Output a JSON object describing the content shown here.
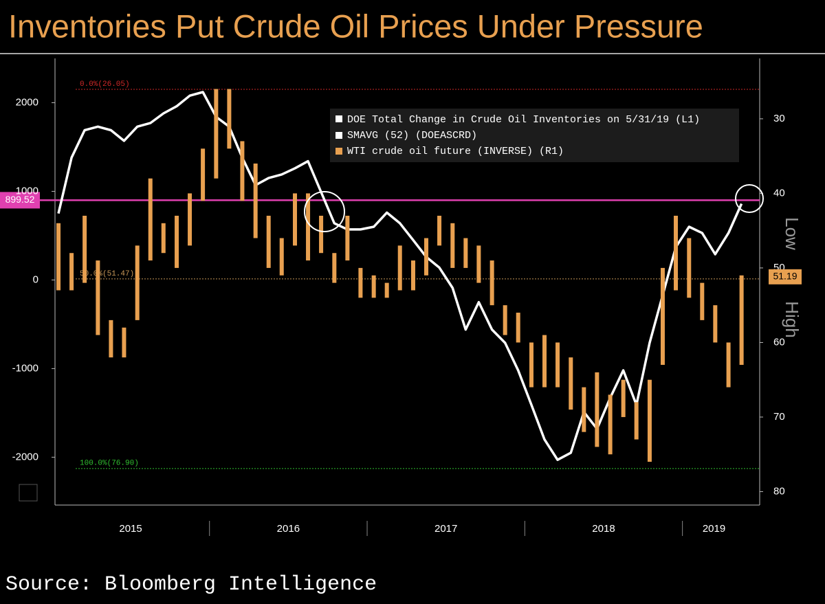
{
  "chart_data": {
    "type": "line",
    "title": "Inventories Put Crude Oil Prices Under Pressure",
    "source": "Source: Bloomberg Intelligence",
    "legend_title": "DOE Total Change in Crude Oil Inventories on 5/31/19 (L1)",
    "x": [
      2015.042,
      2015.125,
      2015.208,
      2015.292,
      2015.375,
      2015.458,
      2015.542,
      2015.625,
      2015.708,
      2015.792,
      2015.875,
      2015.958,
      2016.042,
      2016.125,
      2016.208,
      2016.292,
      2016.375,
      2016.458,
      2016.542,
      2016.625,
      2016.708,
      2016.792,
      2016.875,
      2016.958,
      2017.042,
      2017.125,
      2017.208,
      2017.292,
      2017.375,
      2017.458,
      2017.542,
      2017.625,
      2017.708,
      2017.792,
      2017.875,
      2017.958,
      2018.042,
      2018.125,
      2018.208,
      2018.292,
      2018.375,
      2018.458,
      2018.542,
      2018.625,
      2018.708,
      2018.792,
      2018.875,
      2018.958,
      2019.042,
      2019.125,
      2019.208,
      2019.292,
      2019.375
    ],
    "xlim": [
      2015.02,
      2019.49
    ],
    "xticks": [
      {
        "value": 2015.5,
        "label": "2015"
      },
      {
        "value": 2016.5,
        "label": "2016"
      },
      {
        "value": 2017.5,
        "label": "2017"
      },
      {
        "value": 2018.5,
        "label": "2018"
      },
      {
        "value": 2019.2,
        "label": "2019"
      }
    ],
    "ylim": [
      -2540,
      2500
    ],
    "yticks": [
      2000,
      1000,
      0,
      -1000,
      -2000
    ],
    "y2lim": [
      81.8,
      21.9
    ],
    "y2ticks": [
      30,
      40,
      50,
      60,
      70,
      80
    ],
    "y2_side_labels": [
      "Low",
      "High"
    ],
    "series": [
      {
        "name": "SMAVG (52) (DOEASCRD)",
        "color": "#ffffff",
        "axis": "y",
        "values": [
          750,
          1380,
          1690,
          1730,
          1690,
          1570,
          1730,
          1770,
          1880,
          1960,
          2080,
          2120,
          1840,
          1730,
          1380,
          1070,
          1150,
          1190,
          1260,
          1340,
          990,
          640,
          570,
          570,
          600,
          760,
          640,
          450,
          260,
          140,
          -90,
          -560,
          -250,
          -560,
          -710,
          -1020,
          -1410,
          -1800,
          -2030,
          -1950,
          -1490,
          -1680,
          -1330,
          -1020,
          -1410,
          -710,
          -170,
          370,
          600,
          530,
          290,
          530,
          860
        ]
      },
      {
        "name": "WTI crude oil future (INVERSE) (R1)",
        "color": "#e8a050",
        "axis": "y2",
        "style": "range-bars",
        "low": [
          44,
          48,
          43,
          49,
          57,
          58,
          47,
          38,
          44,
          43,
          40,
          34,
          26,
          26,
          33,
          36,
          43,
          46,
          40,
          40,
          43,
          48,
          43,
          50,
          51,
          52,
          47,
          49,
          46,
          43,
          44,
          46,
          47,
          49,
          55,
          56,
          60,
          59,
          60,
          62,
          66,
          64,
          67,
          65,
          68,
          65,
          50,
          43,
          46,
          52,
          55,
          60,
          51
        ],
        "high": [
          53,
          53,
          52,
          59,
          62,
          62,
          57,
          49,
          48,
          50,
          47,
          41,
          38,
          34,
          41,
          46,
          50,
          51,
          47,
          49,
          48,
          52,
          49,
          54,
          54,
          54,
          53,
          53,
          51,
          47,
          50,
          50,
          52,
          55,
          59,
          60,
          66,
          66,
          66,
          69,
          72,
          74,
          75,
          70,
          73,
          76,
          63,
          53,
          54,
          57,
          60,
          66,
          63
        ]
      }
    ],
    "reference_lines": [
      {
        "value": 899.52,
        "label": "899.52",
        "axis": "y",
        "color": "#e040b0"
      },
      {
        "value": 26.05,
        "label": "0.0%(26.05)",
        "axis": "y2",
        "color": "#d02828"
      },
      {
        "value": 51.47,
        "label": "50.0%(51.47)",
        "axis": "y2",
        "color": "#c89858"
      },
      {
        "value": 76.9,
        "label": "100.0%(76.90)",
        "axis": "y2",
        "color": "#30c030"
      }
    ],
    "last_value": {
      "value": 51.19,
      "label": "51.19",
      "axis": "y2",
      "color": "#e8a050"
    }
  }
}
